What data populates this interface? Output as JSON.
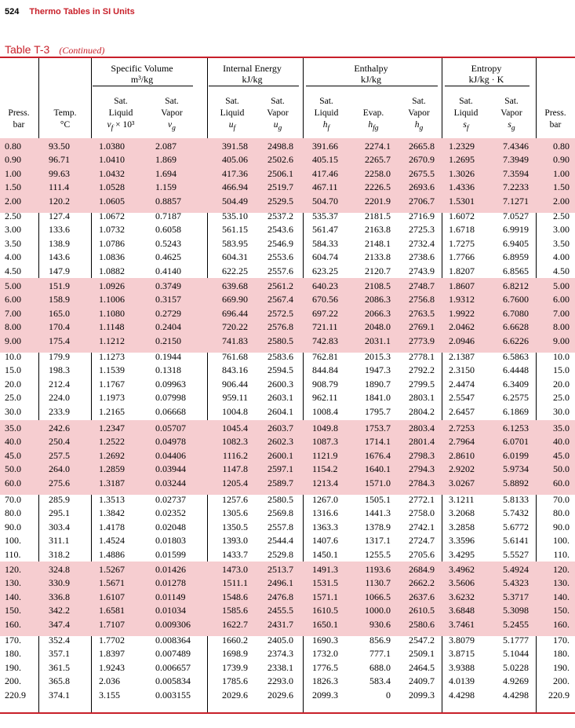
{
  "header": {
    "page_number": "524",
    "book_title": "Thermo Tables in SI Units"
  },
  "table": {
    "number": "Table T-3",
    "continued": "(Continued)",
    "groups": {
      "specific_volume": {
        "title": "Specific Volume",
        "unit": "m³/kg"
      },
      "internal_energy": {
        "title": "Internal Energy",
        "unit": "kJ/kg"
      },
      "enthalpy": {
        "title": "Enthalpy",
        "unit": "kJ/kg"
      },
      "entropy": {
        "title": "Entropy",
        "unit": "kJ/kg · K"
      }
    },
    "columns": {
      "press": {
        "line1": "Press.",
        "line2": "bar"
      },
      "temp": {
        "line1": "Temp.",
        "line2": "°C"
      },
      "vf": {
        "line1": "Sat.",
        "line2": "Liquid",
        "line3": "v",
        "sub": "f",
        "suffix": " × 10³"
      },
      "vg": {
        "line1": "Sat.",
        "line2": "Vapor",
        "line3": "v",
        "sub": "g"
      },
      "uf": {
        "line1": "Sat.",
        "line2": "Liquid",
        "line3": "u",
        "sub": "f"
      },
      "ug": {
        "line1": "Sat.",
        "line2": "Vapor",
        "line3": "u",
        "sub": "g"
      },
      "hf": {
        "line1": "Sat.",
        "line2": "Liquid",
        "line3": "h",
        "sub": "f"
      },
      "hfg": {
        "line1": "",
        "line2": "Evap.",
        "line3": "h",
        "sub": "fg"
      },
      "hg": {
        "line1": "Sat.",
        "line2": "Vapor",
        "line3": "h",
        "sub": "g"
      },
      "sf": {
        "line1": "Sat.",
        "line2": "Liquid",
        "line3": "s",
        "sub": "f"
      },
      "sg": {
        "line1": "Sat.",
        "line2": "Vapor",
        "line3": "s",
        "sub": "g"
      },
      "press2": {
        "line1": "Press.",
        "line2": "bar"
      }
    },
    "rows": [
      [
        "0.80",
        "93.50",
        "1.0380",
        "2.087",
        "391.58",
        "2498.8",
        "391.66",
        "2274.1",
        "2665.8",
        "1.2329",
        "7.4346",
        "0.80"
      ],
      [
        "0.90",
        "96.71",
        "1.0410",
        "1.869",
        "405.06",
        "2502.6",
        "405.15",
        "2265.7",
        "2670.9",
        "1.2695",
        "7.3949",
        "0.90"
      ],
      [
        "1.00",
        "99.63",
        "1.0432",
        "1.694",
        "417.36",
        "2506.1",
        "417.46",
        "2258.0",
        "2675.5",
        "1.3026",
        "7.3594",
        "1.00"
      ],
      [
        "1.50",
        "111.4",
        "1.0528",
        "1.159",
        "466.94",
        "2519.7",
        "467.11",
        "2226.5",
        "2693.6",
        "1.4336",
        "7.2233",
        "1.50"
      ],
      [
        "2.00",
        "120.2",
        "1.0605",
        "0.8857",
        "504.49",
        "2529.5",
        "504.70",
        "2201.9",
        "2706.7",
        "1.5301",
        "7.1271",
        "2.00"
      ],
      [
        "2.50",
        "127.4",
        "1.0672",
        "0.7187",
        "535.10",
        "2537.2",
        "535.37",
        "2181.5",
        "2716.9",
        "1.6072",
        "7.0527",
        "2.50"
      ],
      [
        "3.00",
        "133.6",
        "1.0732",
        "0.6058",
        "561.15",
        "2543.6",
        "561.47",
        "2163.8",
        "2725.3",
        "1.6718",
        "6.9919",
        "3.00"
      ],
      [
        "3.50",
        "138.9",
        "1.0786",
        "0.5243",
        "583.95",
        "2546.9",
        "584.33",
        "2148.1",
        "2732.4",
        "1.7275",
        "6.9405",
        "3.50"
      ],
      [
        "4.00",
        "143.6",
        "1.0836",
        "0.4625",
        "604.31",
        "2553.6",
        "604.74",
        "2133.8",
        "2738.6",
        "1.7766",
        "6.8959",
        "4.00"
      ],
      [
        "4.50",
        "147.9",
        "1.0882",
        "0.4140",
        "622.25",
        "2557.6",
        "623.25",
        "2120.7",
        "2743.9",
        "1.8207",
        "6.8565",
        "4.50"
      ],
      [
        "5.00",
        "151.9",
        "1.0926",
        "0.3749",
        "639.68",
        "2561.2",
        "640.23",
        "2108.5",
        "2748.7",
        "1.8607",
        "6.8212",
        "5.00"
      ],
      [
        "6.00",
        "158.9",
        "1.1006",
        "0.3157",
        "669.90",
        "2567.4",
        "670.56",
        "2086.3",
        "2756.8",
        "1.9312",
        "6.7600",
        "6.00"
      ],
      [
        "7.00",
        "165.0",
        "1.1080",
        "0.2729",
        "696.44",
        "2572.5",
        "697.22",
        "2066.3",
        "2763.5",
        "1.9922",
        "6.7080",
        "7.00"
      ],
      [
        "8.00",
        "170.4",
        "1.1148",
        "0.2404",
        "720.22",
        "2576.8",
        "721.11",
        "2048.0",
        "2769.1",
        "2.0462",
        "6.6628",
        "8.00"
      ],
      [
        "9.00",
        "175.4",
        "1.1212",
        "0.2150",
        "741.83",
        "2580.5",
        "742.83",
        "2031.1",
        "2773.9",
        "2.0946",
        "6.6226",
        "9.00"
      ],
      [
        "10.0",
        "179.9",
        "1.1273",
        "0.1944",
        "761.68",
        "2583.6",
        "762.81",
        "2015.3",
        "2778.1",
        "2.1387",
        "6.5863",
        "10.0"
      ],
      [
        "15.0",
        "198.3",
        "1.1539",
        "0.1318",
        "843.16",
        "2594.5",
        "844.84",
        "1947.3",
        "2792.2",
        "2.3150",
        "6.4448",
        "15.0"
      ],
      [
        "20.0",
        "212.4",
        "1.1767",
        "0.09963",
        "906.44",
        "2600.3",
        "908.79",
        "1890.7",
        "2799.5",
        "2.4474",
        "6.3409",
        "20.0"
      ],
      [
        "25.0",
        "224.0",
        "1.1973",
        "0.07998",
        "959.11",
        "2603.1",
        "962.11",
        "1841.0",
        "2803.1",
        "2.5547",
        "6.2575",
        "25.0"
      ],
      [
        "30.0",
        "233.9",
        "1.2165",
        "0.06668",
        "1004.8",
        "2604.1",
        "1008.4",
        "1795.7",
        "2804.2",
        "2.6457",
        "6.1869",
        "30.0"
      ],
      [
        "35.0",
        "242.6",
        "1.2347",
        "0.05707",
        "1045.4",
        "2603.7",
        "1049.8",
        "1753.7",
        "2803.4",
        "2.7253",
        "6.1253",
        "35.0"
      ],
      [
        "40.0",
        "250.4",
        "1.2522",
        "0.04978",
        "1082.3",
        "2602.3",
        "1087.3",
        "1714.1",
        "2801.4",
        "2.7964",
        "6.0701",
        "40.0"
      ],
      [
        "45.0",
        "257.5",
        "1.2692",
        "0.04406",
        "1116.2",
        "2600.1",
        "1121.9",
        "1676.4",
        "2798.3",
        "2.8610",
        "6.0199",
        "45.0"
      ],
      [
        "50.0",
        "264.0",
        "1.2859",
        "0.03944",
        "1147.8",
        "2597.1",
        "1154.2",
        "1640.1",
        "2794.3",
        "2.9202",
        "5.9734",
        "50.0"
      ],
      [
        "60.0",
        "275.6",
        "1.3187",
        "0.03244",
        "1205.4",
        "2589.7",
        "1213.4",
        "1571.0",
        "2784.3",
        "3.0267",
        "5.8892",
        "60.0"
      ],
      [
        "70.0",
        "285.9",
        "1.3513",
        "0.02737",
        "1257.6",
        "2580.5",
        "1267.0",
        "1505.1",
        "2772.1",
        "3.1211",
        "5.8133",
        "70.0"
      ],
      [
        "80.0",
        "295.1",
        "1.3842",
        "0.02352",
        "1305.6",
        "2569.8",
        "1316.6",
        "1441.3",
        "2758.0",
        "3.2068",
        "5.7432",
        "80.0"
      ],
      [
        "90.0",
        "303.4",
        "1.4178",
        "0.02048",
        "1350.5",
        "2557.8",
        "1363.3",
        "1378.9",
        "2742.1",
        "3.2858",
        "5.6772",
        "90.0"
      ],
      [
        "100.",
        "311.1",
        "1.4524",
        "0.01803",
        "1393.0",
        "2544.4",
        "1407.6",
        "1317.1",
        "2724.7",
        "3.3596",
        "5.6141",
        "100."
      ],
      [
        "110.",
        "318.2",
        "1.4886",
        "0.01599",
        "1433.7",
        "2529.8",
        "1450.1",
        "1255.5",
        "2705.6",
        "3.4295",
        "5.5527",
        "110."
      ],
      [
        "120.",
        "324.8",
        "1.5267",
        "0.01426",
        "1473.0",
        "2513.7",
        "1491.3",
        "1193.6",
        "2684.9",
        "3.4962",
        "5.4924",
        "120."
      ],
      [
        "130.",
        "330.9",
        "1.5671",
        "0.01278",
        "1511.1",
        "2496.1",
        "1531.5",
        "1130.7",
        "2662.2",
        "3.5606",
        "5.4323",
        "130."
      ],
      [
        "140.",
        "336.8",
        "1.6107",
        "0.01149",
        "1548.6",
        "2476.8",
        "1571.1",
        "1066.5",
        "2637.6",
        "3.6232",
        "5.3717",
        "140."
      ],
      [
        "150.",
        "342.2",
        "1.6581",
        "0.01034",
        "1585.6",
        "2455.5",
        "1610.5",
        "1000.0",
        "2610.5",
        "3.6848",
        "5.3098",
        "150."
      ],
      [
        "160.",
        "347.4",
        "1.7107",
        "0.009306",
        "1622.7",
        "2431.7",
        "1650.1",
        "930.6",
        "2580.6",
        "3.7461",
        "5.2455",
        "160."
      ],
      [
        "170.",
        "352.4",
        "1.7702",
        "0.008364",
        "1660.2",
        "2405.0",
        "1690.3",
        "856.9",
        "2547.2",
        "3.8079",
        "5.1777",
        "170."
      ],
      [
        "180.",
        "357.1",
        "1.8397",
        "0.007489",
        "1698.9",
        "2374.3",
        "1732.0",
        "777.1",
        "2509.1",
        "3.8715",
        "5.1044",
        "180."
      ],
      [
        "190.",
        "361.5",
        "1.9243",
        "0.006657",
        "1739.9",
        "2338.1",
        "1776.5",
        "688.0",
        "2464.5",
        "3.9388",
        "5.0228",
        "190."
      ],
      [
        "200.",
        "365.8",
        "2.036",
        "0.005834",
        "1785.6",
        "2293.0",
        "1826.3",
        "583.4",
        "2409.7",
        "4.0139",
        "4.9269",
        "200."
      ],
      [
        "220.9",
        "374.1",
        "3.155",
        "0.003155",
        "2029.6",
        "2029.6",
        "2099.3",
        "0",
        "2099.3",
        "4.4298",
        "4.4298",
        "220.9"
      ]
    ]
  }
}
